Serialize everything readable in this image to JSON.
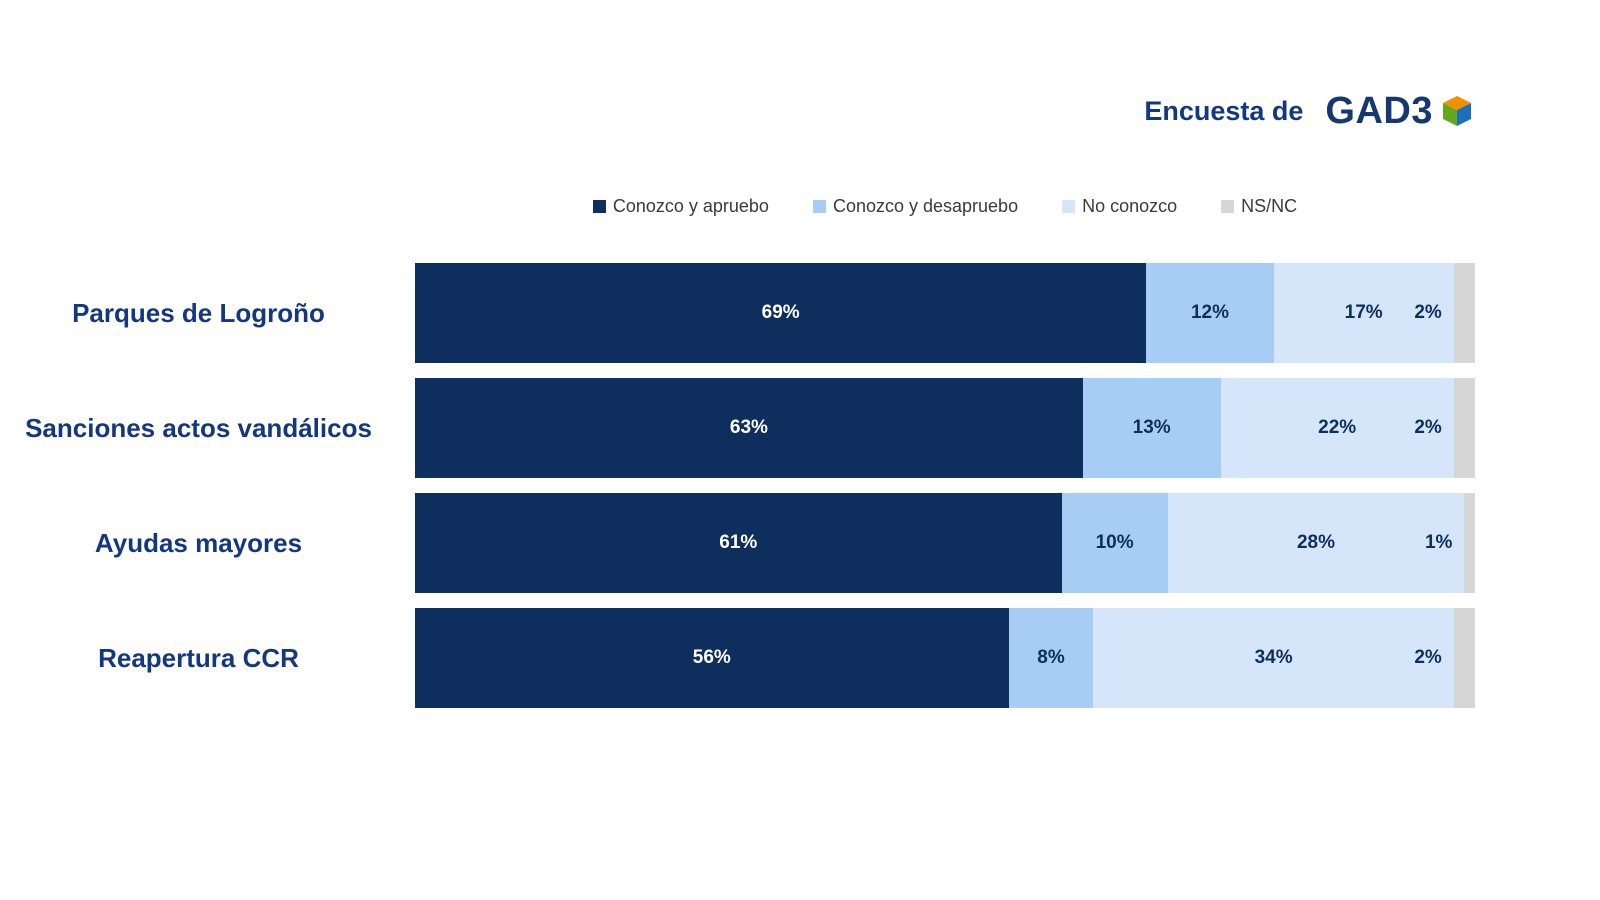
{
  "header": {
    "prefix": "Encuesta de",
    "brand": "GAD3"
  },
  "colors": {
    "approve": "#0e2f5e",
    "disapprove": "#a8cdf4",
    "unknown": "#d5e6fa",
    "nsnc": "#d6d6d6",
    "category_label": "#14387f",
    "label_on_dark": "#ffffff",
    "label_on_light": "#0e2f5e",
    "brand_blue": "#16386e",
    "cube_orange": "#f29100",
    "cube_green": "#5fa c1f",
    "cube_blue": "#1d70b7"
  },
  "chart_data": {
    "type": "bar",
    "orientation": "horizontal",
    "stacked": true,
    "title": "",
    "xlabel": "",
    "ylabel": "",
    "xlim": [
      0,
      100
    ],
    "grid": false,
    "legend_position": "top",
    "value_suffix": "%",
    "categories": [
      "Parques de Logroño",
      "Sanciones actos vandálicos",
      "Ayudas mayores",
      "Reapertura CCR"
    ],
    "series": [
      {
        "name": "Conozco y apruebo",
        "color": "#0e2f5e",
        "values": [
          69,
          63,
          61,
          56
        ]
      },
      {
        "name": "Conozco y desapruebo",
        "color": "#a8cdf4",
        "values": [
          12,
          13,
          10,
          8
        ]
      },
      {
        "name": "No conozco",
        "color": "#d5e6fa",
        "values": [
          17,
          22,
          28,
          34
        ]
      },
      {
        "name": "NS/NC",
        "color": "#d6d6d6",
        "values": [
          2,
          2,
          1,
          2
        ]
      }
    ]
  }
}
